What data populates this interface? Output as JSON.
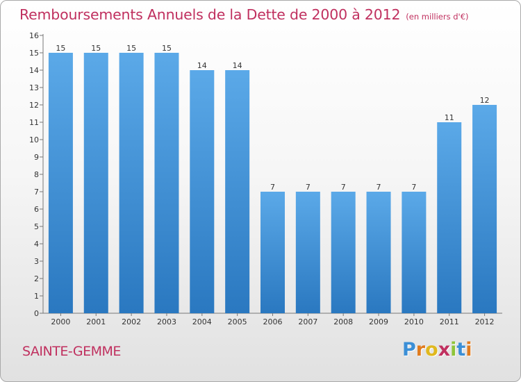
{
  "chart_data": {
    "type": "bar",
    "title": "Remboursements Annuels de la Dette de 2000 à 2012",
    "subtitle": "(en milliers d'€)",
    "categories": [
      "2000",
      "2001",
      "2002",
      "2003",
      "2004",
      "2005",
      "2006",
      "2007",
      "2008",
      "2009",
      "2010",
      "2011",
      "2012"
    ],
    "values": [
      15,
      15,
      15,
      15,
      14,
      14,
      7,
      7,
      7,
      7,
      7,
      11,
      12
    ],
    "ylim": [
      0,
      16
    ],
    "yticks": [
      0,
      1,
      2,
      3,
      4,
      5,
      6,
      7,
      8,
      9,
      10,
      11,
      12,
      13,
      14,
      15,
      16
    ],
    "grid": false,
    "bar_color": "#5ba9e8",
    "bar_color_dark": "#2a78c0",
    "show_data_labels": true
  },
  "commune": "SAINTE-GEMME",
  "logo": {
    "letters": [
      "P",
      "r",
      "o",
      "x",
      "i",
      "t",
      "i"
    ],
    "colors": [
      "#3b8fd6",
      "#e07b1e",
      "#e0b81e",
      "#c0305f",
      "#8fc43a",
      "#3b8fd6",
      "#e07b1e"
    ]
  },
  "colors": {
    "accent": "#c0305f"
  }
}
